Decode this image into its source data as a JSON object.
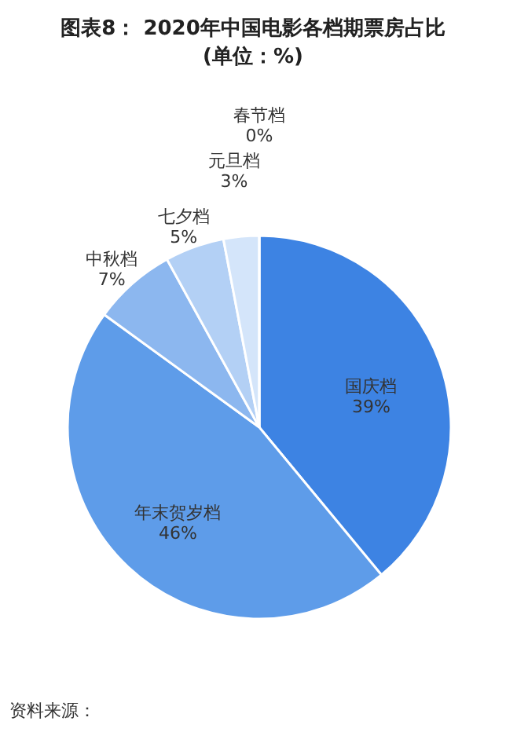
{
  "chart_data": {
    "type": "pie",
    "title": "图表8： 2020年中国电影各档期票房占比(单位：%)",
    "categories": [
      "国庆档",
      "年末贺岁档",
      "中秋档",
      "七夕档",
      "元旦档",
      "春节档"
    ],
    "values": [
      39,
      46,
      7,
      5,
      3,
      0
    ],
    "value_labels": [
      "39%",
      "46%",
      "7%",
      "5%",
      "3%",
      "0%"
    ],
    "colors": [
      "#3d83e3",
      "#5e9ce9",
      "#8cb7ef",
      "#b3d0f5",
      "#d4e5fa",
      "#e9f2fd"
    ],
    "annotations": [
      "资料来源："
    ]
  }
}
